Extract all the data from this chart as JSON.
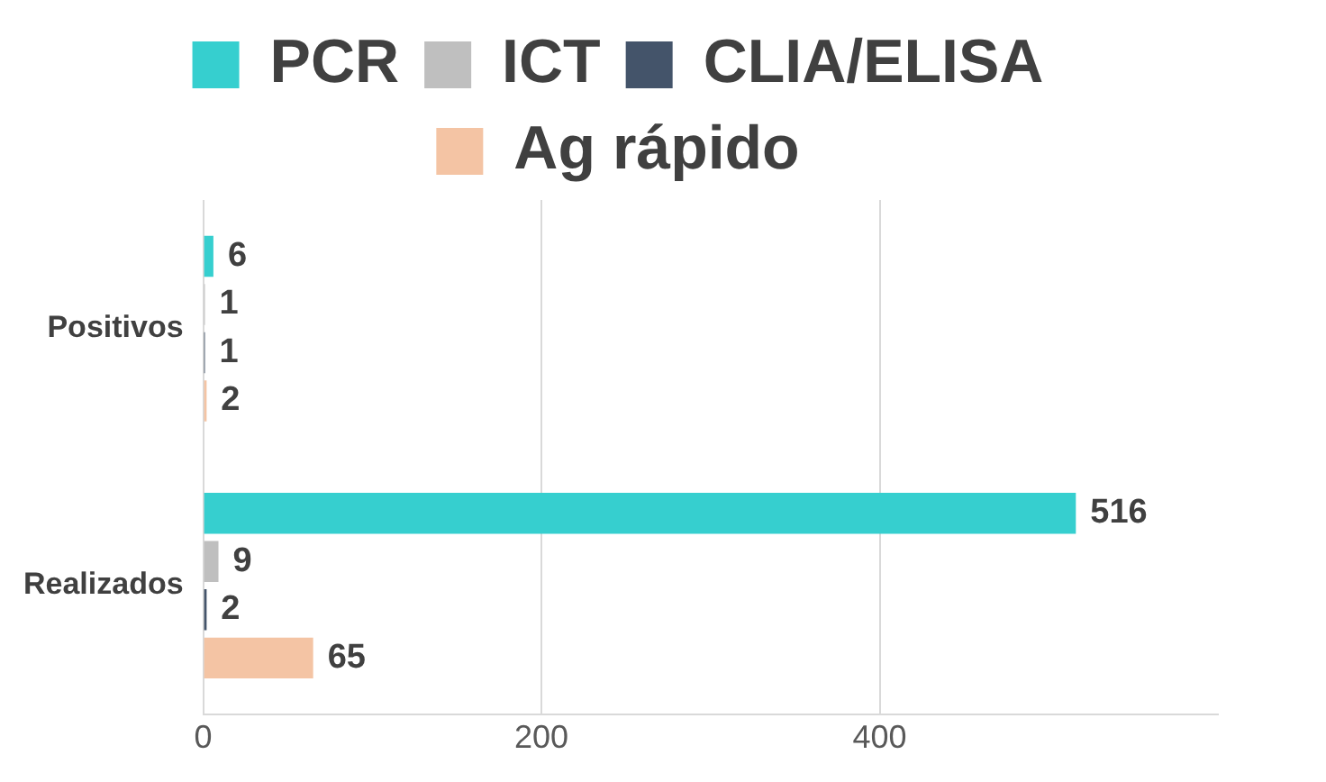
{
  "chart_data": {
    "type": "bar",
    "orientation": "horizontal",
    "categories": [
      "Positivos",
      "Realizados"
    ],
    "series": [
      {
        "name": "PCR",
        "color": "#36cfcf",
        "values": [
          6,
          516
        ]
      },
      {
        "name": "ICT",
        "color": "#bfbfbf",
        "values": [
          1,
          9
        ]
      },
      {
        "name": "CLIA/ELISA",
        "color": "#44546a",
        "values": [
          1,
          2
        ]
      },
      {
        "name": "Ag rápido",
        "color": "#f4c4a4",
        "values": [
          2,
          65
        ]
      }
    ],
    "xlim": [
      0,
      600
    ],
    "xticks": [
      0,
      200,
      400
    ],
    "grid": "x",
    "legend": "top",
    "data_labels": true
  }
}
